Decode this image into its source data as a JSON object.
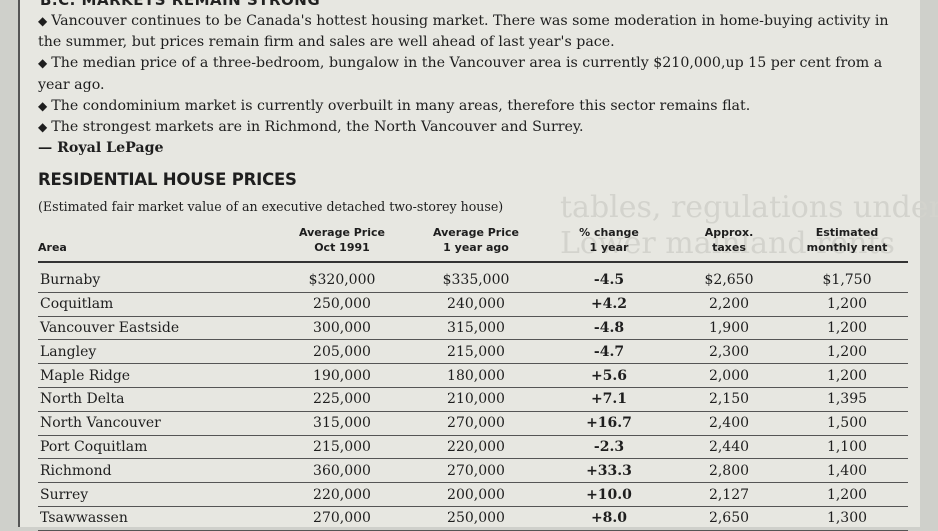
{
  "clipping": {
    "title": "B.C. MARKETS REMAIN STRONG",
    "notes": [
      "Vancouver continues to be Canada's hottest housing market. There was some moderation in home-buying activity in the summer, but prices remain firm and sales are well ahead of last year's pace.",
      "The median price of a three-bedroom, bungalow  in the Vancouver area is currently $210,000,up 15 per cent from a year ago.",
      "The condominium market is currently overbuilt in many areas, therefore this sector remains flat.",
      "The strongest markets are in Richmond, the North Vancouver and Surrey."
    ],
    "source": "— Royal LePage"
  },
  "bullet_glyph": "◆",
  "background_text": "tables, regulations under Lower mainland rents",
  "table": {
    "title": "RESIDENTIAL HOUSE PRICES",
    "subtitle": "(Estimated fair market value of an executive detached two-storey house)",
    "columns": [
      {
        "line1": "",
        "line2": "Area"
      },
      {
        "line1": "Average Price",
        "line2": "Oct 1991"
      },
      {
        "line1": "Average Price",
        "line2": "1 year ago"
      },
      {
        "line1": "% change",
        "line2": "1 year"
      },
      {
        "line1": "Approx.",
        "line2": "taxes"
      },
      {
        "line1": "Estimated",
        "line2": "monthly rent"
      }
    ],
    "rows": [
      {
        "area": "Burnaby",
        "oct1991": "$320,000",
        "year_ago": "$335,000",
        "change": "-4.5",
        "taxes": "$2,650",
        "rent": "$1,750"
      },
      {
        "area": "Coquitlam",
        "oct1991": "250,000",
        "year_ago": "240,000",
        "change": "+4.2",
        "taxes": "2,200",
        "rent": "1,200"
      },
      {
        "area": "Vancouver Eastside",
        "oct1991": "300,000",
        "year_ago": "315,000",
        "change": "-4.8",
        "taxes": "1,900",
        "rent": "1,200"
      },
      {
        "area": "Langley",
        "oct1991": "205,000",
        "year_ago": "215,000",
        "change": "-4.7",
        "taxes": "2,300",
        "rent": "1,200"
      },
      {
        "area": "Maple Ridge",
        "oct1991": "190,000",
        "year_ago": "180,000",
        "change": "+5.6",
        "taxes": "2,000",
        "rent": "1,200"
      },
      {
        "area": "North Delta",
        "oct1991": "225,000",
        "year_ago": "210,000",
        "change": "+7.1",
        "taxes": "2,150",
        "rent": "1,395"
      },
      {
        "area": "North Vancouver",
        "oct1991": "315,000",
        "year_ago": "270,000",
        "change": "+16.7",
        "taxes": "2,400",
        "rent": "1,500"
      },
      {
        "area": "Port Coquitlam",
        "oct1991": "215,000",
        "year_ago": "220,000",
        "change": "-2.3",
        "taxes": "2,440",
        "rent": "1,100"
      },
      {
        "area": "Richmond",
        "oct1991": "360,000",
        "year_ago": "270,000",
        "change": "+33.3",
        "taxes": "2,800",
        "rent": "1,400"
      },
      {
        "area": "Surrey",
        "oct1991": "220,000",
        "year_ago": "200,000",
        "change": "+10.0",
        "taxes": "2,127",
        "rent": "1,200"
      },
      {
        "area": "Tsawwassen",
        "oct1991": "270,000",
        "year_ago": "250,000",
        "change": "+8.0",
        "taxes": "2,650",
        "rent": "1,300"
      }
    ]
  }
}
